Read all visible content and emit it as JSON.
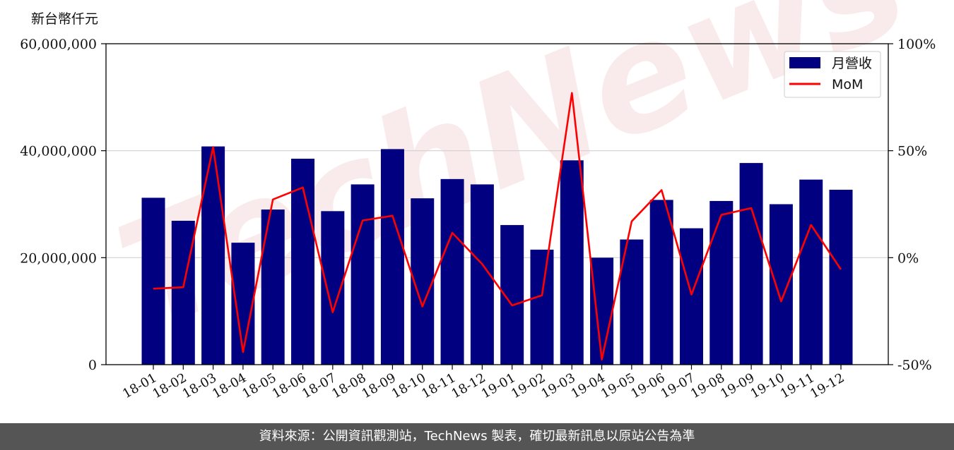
{
  "chart_data": {
    "type": "bar",
    "y_unit_label": "新台幣仟元",
    "categories": [
      "18-01",
      "18-02",
      "18-03",
      "18-04",
      "18-05",
      "18-06",
      "18-07",
      "18-08",
      "18-09",
      "18-10",
      "18-11",
      "18-12",
      "19-01",
      "19-02",
      "19-03",
      "19-04",
      "19-05",
      "19-06",
      "19-07",
      "19-08",
      "19-09",
      "19-10",
      "19-11",
      "19-12"
    ],
    "series": [
      {
        "name": "月營收",
        "type": "bar",
        "color": "#000080",
        "axis": "left",
        "values": [
          31200000,
          26900000,
          40800000,
          22800000,
          29000000,
          38500000,
          28700000,
          33700000,
          40300000,
          31100000,
          34700000,
          33700000,
          26100000,
          21500000,
          38200000,
          20000000,
          23400000,
          30800000,
          25500000,
          30600000,
          37700000,
          30000000,
          34600000,
          32700000
        ]
      },
      {
        "name": "MoM",
        "type": "line",
        "color": "#ff0000",
        "axis": "right",
        "values": [
          -14.5,
          -13.8,
          51.7,
          -44.1,
          27.2,
          32.8,
          -25.5,
          17.4,
          19.6,
          -22.8,
          11.6,
          -3.0,
          -22.3,
          -17.6,
          77.0,
          -47.6,
          17.0,
          31.6,
          -17.2,
          20.0,
          23.2,
          -20.4,
          15.3,
          -5.5
        ]
      }
    ],
    "ylim_left": [
      0,
      60000000
    ],
    "yticks_left": [
      "0",
      "20,000,000",
      "40,000,000",
      "60,000,000"
    ],
    "ylim_right": [
      -50,
      100
    ],
    "yticks_right": [
      "-50%",
      "0%",
      "50%",
      "100%"
    ],
    "grid": "horizontal",
    "legend_position": "top-right",
    "watermark": "TechNews"
  },
  "footer": {
    "text": "資料來源：公開資訊觀測站，TechNews 製表，確切最新訊息以原站公告為準"
  }
}
